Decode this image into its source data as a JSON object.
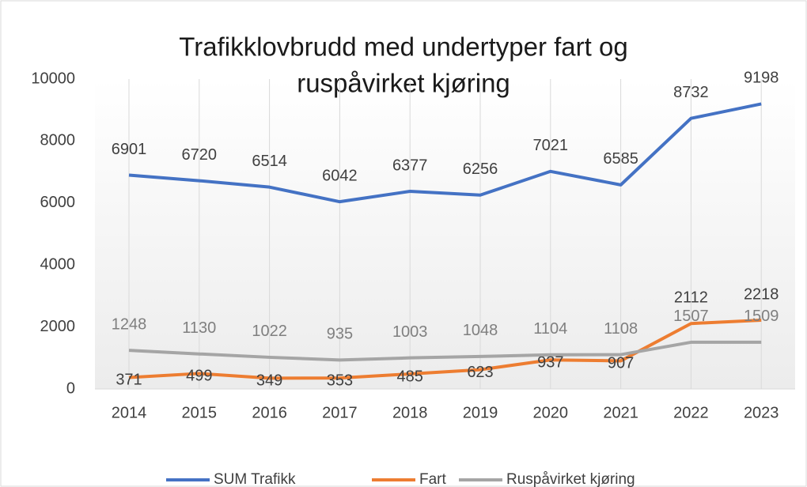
{
  "chart_data": {
    "type": "line",
    "title": [
      "Trafikklovbrudd med undertyper fart og",
      "ruspåvirket kjøring"
    ],
    "categories": [
      "2014",
      "2015",
      "2016",
      "2017",
      "2018",
      "2019",
      "2020",
      "2021",
      "2022",
      "2023"
    ],
    "series": [
      {
        "name": "SUM Trafikk",
        "color": "#4472c4",
        "values": [
          6901,
          6720,
          6514,
          6042,
          6377,
          6256,
          7021,
          6585,
          8732,
          9198
        ]
      },
      {
        "name": "Fart",
        "color": "#ed7d31",
        "values": [
          371,
          499,
          349,
          353,
          485,
          623,
          937,
          907,
          2112,
          2218
        ]
      },
      {
        "name": "Ruspåvirket kjøring",
        "color": "#a5a5a5",
        "values": [
          1248,
          1130,
          1022,
          935,
          1003,
          1048,
          1104,
          1108,
          1507,
          1509
        ]
      }
    ],
    "ylim": [
      0,
      10000
    ],
    "yticks": [
      0,
      2000,
      4000,
      6000,
      8000,
      10000
    ],
    "grid": true,
    "legend": "bottom"
  }
}
